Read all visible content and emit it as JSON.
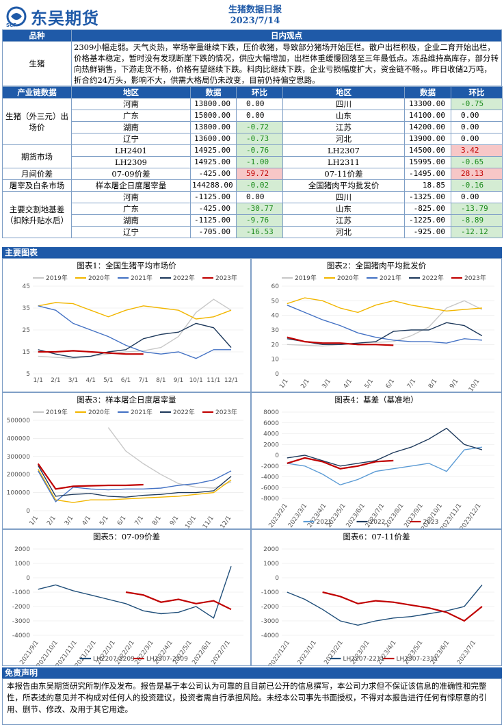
{
  "header": {
    "logo_text": "东吴期货",
    "logo_sub": "SCF",
    "title": "生猪数据日报",
    "date": "2023/7/14"
  },
  "colors": {
    "brand": "#1f5aa8",
    "up": "#c00000",
    "down": "#1a8a1a"
  },
  "view": {
    "col1": "品种",
    "col2": "日内观点",
    "product": "生猪",
    "text": "2309小幅走弱。天气炎热，宰场宰量继续下跌，压价收猪，导致部分猪场开始压栏。散户出栏积极，企业二育开始出栏，价格基本稳定，暂时没有发现断崖下跌的情况，供应大幅增加，出栏体重缓慢回落至三年最低点。冻品维持高库存，部分转向热鲜销售，下游走货不畅，价格有望继续下跌。料肉比继续下跌，企业亏损幅度扩大，资金链不畅，。昨日收储2万吨，折合约24万头，影响不大，供需大格局仍未改变，目前仍持偏空思路。"
  },
  "table": {
    "headers": [
      "产业链数据",
      "地区",
      "数据",
      "环比",
      "地区",
      "数据",
      "环比"
    ],
    "groups": [
      {
        "name": "生猪（外三元）出场价",
        "rows": [
          [
            "河南",
            "13800.00",
            "0.00",
            "",
            "四川",
            "13300.00",
            "-0.75",
            "g"
          ],
          [
            "广东",
            "15000.00",
            "0.00",
            "",
            "山东",
            "14100.00",
            "0.00",
            ""
          ],
          [
            "湖南",
            "13800.00",
            "-0.72",
            "g",
            "江苏",
            "14200.00",
            "0.00",
            ""
          ],
          [
            "辽宁",
            "13600.00",
            "-0.73",
            "g",
            "河北",
            "13900.00",
            "0.00",
            ""
          ]
        ]
      },
      {
        "name": "期货市场",
        "rows": [
          [
            "LH2401",
            "14925.00",
            "-0.76",
            "g",
            "LH2307",
            "14500.00",
            "3.42",
            "r"
          ],
          [
            "LH2309",
            "14925.00",
            "-1.00",
            "g",
            "LH2311",
            "15995.00",
            "-0.65",
            "g"
          ]
        ]
      },
      {
        "name": "月间价差",
        "rows": [
          [
            "07-09价差",
            "-425.00",
            "59.72",
            "r",
            "07-11价差",
            "-1495.00",
            "28.13",
            "r"
          ]
        ]
      },
      {
        "name": "屠宰及白条市场",
        "rows": [
          [
            "样本屠企日度屠宰量",
            "144288.00",
            "-0.02",
            "g",
            "全国猪肉平均批发价",
            "18.85",
            "-0.16",
            "g"
          ]
        ]
      },
      {
        "name": "主要交割地基差（扣除升贴水后）",
        "rows": [
          [
            "河南",
            "-1125.00",
            "0.00",
            "",
            "四川",
            "-1325.00",
            "0.00",
            ""
          ],
          [
            "广东",
            "-425.00",
            "-30.77",
            "g",
            "山东",
            "-825.00",
            "-13.79",
            "g"
          ],
          [
            "湖南",
            "-1125.00",
            "-9.76",
            "g",
            "江苏",
            "-1225.00",
            "-8.89",
            "g"
          ],
          [
            "辽宁",
            "-705.00",
            "-16.53",
            "g",
            "河北",
            "-925.00",
            "-12.12",
            "g"
          ]
        ]
      }
    ]
  },
  "charts_title": "主要图表",
  "chart_data": [
    {
      "type": "line",
      "title": "图表1：全国生猪平均市场价",
      "ylim": [
        5,
        45
      ],
      "yticks": [
        "45",
        "35",
        "25",
        "15",
        "5"
      ],
      "xticks": [
        "1/1",
        "2/1",
        "3/1",
        "4/1",
        "5/1",
        "6/1",
        "7/1",
        "8/1",
        "9/1",
        "10/1",
        "11/1",
        "12/1"
      ],
      "series": [
        {
          "name": "2019年",
          "color": "#c8c8c8",
          "values": [
            13,
            12.5,
            12,
            13,
            14,
            15,
            15.5,
            17,
            22,
            33,
            39,
            34
          ]
        },
        {
          "name": "2020年",
          "color": "#f2b600",
          "values": [
            36,
            37.5,
            37,
            34,
            31,
            34,
            36,
            35,
            34,
            30,
            31,
            34
          ]
        },
        {
          "name": "2021年",
          "color": "#4472c4",
          "values": [
            36,
            34,
            28,
            25,
            22,
            18,
            15,
            14,
            15,
            12,
            16,
            16
          ]
        },
        {
          "name": "2022年",
          "color": "#1f3a5c",
          "values": [
            16,
            14,
            12.5,
            13,
            15,
            16,
            21,
            23,
            24,
            28,
            26,
            17
          ]
        },
        {
          "name": "2023年",
          "color": "#c00000",
          "values": [
            15,
            15,
            15.5,
            15,
            14.5,
            14,
            14
          ]
        }
      ]
    },
    {
      "type": "line",
      "title": "图表2：全国猪肉平均批发价",
      "ylim": [
        0,
        60
      ],
      "yticks": [
        "60",
        "50",
        "40",
        "30",
        "20",
        "10",
        "0"
      ],
      "xticks": [
        "1/1",
        "2/1",
        "3/1",
        "4/1",
        "5/1",
        "6/1",
        "7/1",
        "8/1",
        "9/1",
        "10/1"
      ],
      "series": [
        {
          "name": "2019年",
          "color": "#c8c8c8",
          "values": [
            20,
            19.5,
            19,
            20,
            21,
            21.5,
            22,
            26,
            32,
            45,
            50,
            44
          ]
        },
        {
          "name": "2020年",
          "color": "#f2b600",
          "values": [
            48,
            52,
            50,
            45,
            42,
            47,
            50,
            47,
            45,
            43,
            44,
            45
          ]
        },
        {
          "name": "2021年",
          "color": "#4472c4",
          "values": [
            47,
            42,
            37,
            33,
            28,
            25,
            23,
            22,
            22,
            21,
            24,
            23
          ]
        },
        {
          "name": "2022年",
          "color": "#1f3a5c",
          "values": [
            24,
            22,
            20,
            20,
            21,
            22,
            29,
            30,
            30,
            35,
            33,
            26
          ]
        },
        {
          "name": "2023年",
          "color": "#c00000",
          "values": [
            25,
            22,
            21,
            21,
            20,
            20,
            19.5
          ]
        }
      ]
    },
    {
      "type": "line",
      "title": "图表3：样本屠企日度屠宰量",
      "ylim": [
        0,
        500000
      ],
      "yticks": [
        "500000",
        "400000",
        "300000",
        "200000",
        "100000",
        "0"
      ],
      "xticks": [
        "1/1",
        "2/1",
        "3/1",
        "4/1",
        "5/1",
        "6/1",
        "7/1",
        "8/1",
        "9/1",
        "10/1",
        "11/1",
        "12/1"
      ],
      "series": [
        {
          "name": "2019年",
          "color": "#c8c8c8",
          "values": [
            null,
            null,
            null,
            null,
            460000,
            330000,
            260000,
            200000,
            150000,
            130000,
            125000,
            160000
          ]
        },
        {
          "name": "2020年",
          "color": "#f2b600",
          "values": [
            230000,
            60000,
            45000,
            60000,
            60000,
            65000,
            70000,
            75000,
            80000,
            90000,
            100000,
            170000
          ]
        },
        {
          "name": "2021年",
          "color": "#4472c4",
          "values": [
            220000,
            50000,
            130000,
            120000,
            115000,
            120000,
            120000,
            125000,
            140000,
            150000,
            170000,
            220000
          ]
        },
        {
          "name": "2022年",
          "color": "#1f3a5c",
          "values": [
            250000,
            80000,
            90000,
            95000,
            80000,
            75000,
            85000,
            90000,
            100000,
            100000,
            110000,
            190000
          ]
        },
        {
          "name": "2023年",
          "color": "#c00000",
          "values": [
            260000,
            120000,
            135000,
            138000,
            140000,
            140000,
            144000
          ]
        }
      ]
    },
    {
      "type": "line",
      "title": "图表4：基差（基准地）",
      "ylim": [
        -8000,
        8000
      ],
      "yticks": [
        "8000",
        "6000",
        "4000",
        "2000",
        "0",
        "-2000",
        "-4000",
        "-6000",
        "-8000"
      ],
      "xticks": [
        "2023/2/1",
        "2023/3/1",
        "2023/4/1",
        "2023/5/1",
        "2023/6/1",
        "2023/7/1",
        "2023/8/1",
        "2023/9/1",
        "2023/10/1",
        "2023/11/1",
        "2023/12/1"
      ],
      "series": [
        {
          "name": "2021",
          "color": "#5b9bd5",
          "values": [
            -1500,
            -2000,
            -3500,
            -5500,
            -4500,
            -3000,
            -2500,
            -2000,
            -1500,
            -3000,
            1000,
            1500
          ]
        },
        {
          "name": "2022",
          "color": "#1f3a5c",
          "values": [
            -500,
            0,
            -1000,
            -2000,
            -1500,
            -1000,
            500,
            1500,
            3000,
            5000,
            2000,
            1000
          ]
        },
        {
          "name": "2023",
          "color": "#c00000",
          "values": [
            -1500,
            -500,
            -1200,
            -2500,
            -2000,
            -1200,
            -1000
          ]
        }
      ]
    },
    {
      "type": "line",
      "title": "图表5：07-09价差",
      "ylim": [
        -4000,
        2000
      ],
      "yticks": [
        "2000",
        "1000",
        "0",
        "-1000",
        "-2000",
        "-3000",
        "-4000"
      ],
      "xticks": [
        "2021/9/1",
        "2021/10/1",
        "2021/11/1",
        "2021/12/1",
        "2022/1/1",
        "2022/2/1",
        "2022/3/1",
        "2022/4/1",
        "2022/5/1",
        "2022/6/1",
        "2022/7/1"
      ],
      "series": [
        {
          "name": "LH2207-2209",
          "color": "#1f4e79",
          "values": [
            -800,
            -500,
            -900,
            -1200,
            -1500,
            -1800,
            -2300,
            -2500,
            -2400,
            -2000,
            -2800,
            800
          ]
        },
        {
          "name": "LH2307-2309",
          "color": "#c00000",
          "values": [
            null,
            null,
            null,
            null,
            null,
            -1000,
            -1200,
            -1700,
            -1500,
            -1800,
            -1600,
            -2200
          ]
        }
      ]
    },
    {
      "type": "line",
      "title": "图表6：07-11价差",
      "ylim": [
        -4000,
        2000
      ],
      "yticks": [
        "2000",
        "1000",
        "0",
        "-1000",
        "-2000",
        "-3000",
        "-4000"
      ],
      "xticks": [
        "2022/12/1",
        "2023/1/1",
        "2023/2/1",
        "2023/3/1",
        "2023/4/1",
        "2023/5/1",
        "2023/6/1",
        "2023/7/1"
      ],
      "series": [
        {
          "name": "LH2207-2211",
          "color": "#1f4e79",
          "values": [
            -1000,
            -1500,
            -2200,
            -3000,
            -3300,
            -3000,
            -2800,
            -2700,
            -2500,
            -2300,
            -2000,
            -500
          ]
        },
        {
          "name": "LH2307-2311",
          "color": "#c00000",
          "values": [
            null,
            null,
            -1000,
            -1300,
            -1800,
            -1600,
            -1700,
            -1900,
            -2100,
            -2400,
            -3000,
            -2000
          ]
        }
      ]
    }
  ],
  "disclaimer": {
    "title": "免责声明",
    "text": "本报告由东吴期货研究所制作及发布。报告是基于本公司认为可靠的且目前已公开的信息撰写，本公司力求但不保证该信息的准确性和完整性，所表述的意见并不构成对任何人的投资建议，投资者需自行承担风险。未经本公司事先书面授权，不得对本报告进行任何有悖原意的引用、删节、修改、及用于其它用途。"
  }
}
